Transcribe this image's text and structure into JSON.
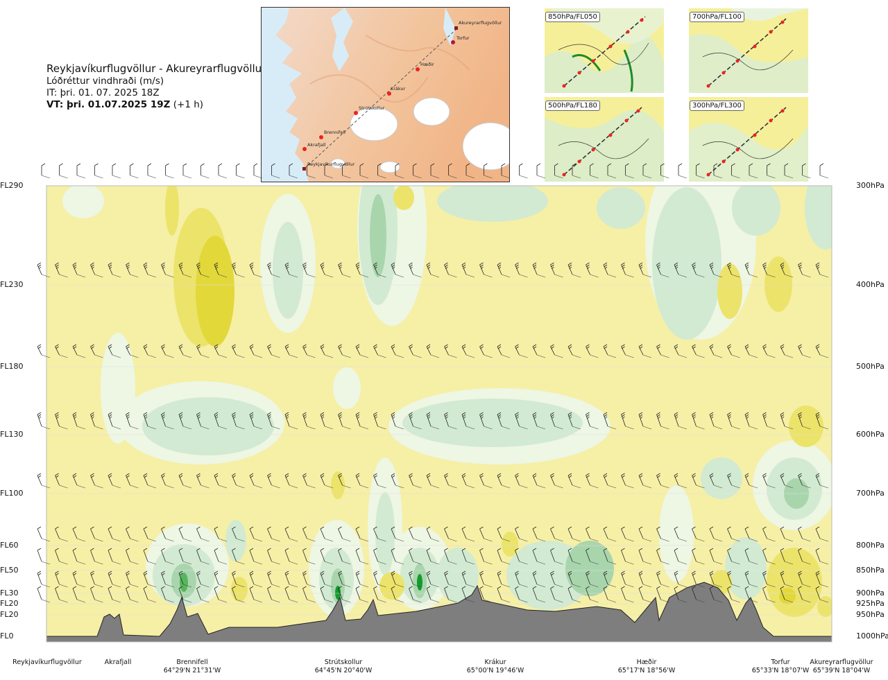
{
  "header": {
    "route": "Reykjavíkurflugvöllur - Akureyrarflugvöllur",
    "product": "Lóðréttur vindhraði (m/s)",
    "issue": "IT: þri. 01. 07. 2025 18Z",
    "valid_bold": "VT: þri. 01.07.2025 19Z",
    "valid_suffix": " (+1 h)"
  },
  "map": {
    "labels": [
      "Akureyrarflugvöllur",
      "Torfur",
      "Hæðir",
      "Krákur",
      "Strútskollur",
      "Brennifell",
      "Akrafjall",
      "Reykjavíkurflugvöllur"
    ]
  },
  "mini_maps": [
    {
      "label": "850hPa/FL050"
    },
    {
      "label": "700hPa/FL100"
    },
    {
      "label": "500hPa/FL180"
    },
    {
      "label": "300hPa/FL300"
    }
  ],
  "chart_data": {
    "type": "heatmap",
    "title": "Lóðréttur vindhraði (m/s)",
    "x_axis": "waypoints along route",
    "flight_levels": [
      "FL290",
      "FL230",
      "FL180",
      "FL130",
      "FL100",
      "FL60",
      "FL50",
      "FL30",
      "FL20",
      "FL20",
      "FL0"
    ],
    "pressure_levels": [
      "300hPa",
      "400hPa",
      "500hPa",
      "600hPa",
      "700hPa",
      "800hPa",
      "850hPa",
      "900hPa",
      "925hPa",
      "950hPa",
      "1000hPa"
    ],
    "waypoints": [
      {
        "name": "Reykjavíkurflugvöllur",
        "coord": ""
      },
      {
        "name": "Akrafjall",
        "coord": ""
      },
      {
        "name": "Brennifell",
        "coord": "64°29'N 21°31'W"
      },
      {
        "name": "Strútskollur",
        "coord": "64°45'N 20°40'W"
      },
      {
        "name": "Krákur",
        "coord": "65°00'N 19°46'W"
      },
      {
        "name": "Hæðir",
        "coord": "65°17'N 18°56'W"
      },
      {
        "name": "Torfur",
        "coord": "65°33'N 18°07'W"
      },
      {
        "name": "Akureyrarflugvöllur",
        "coord": "65°39'N 18°04'W"
      }
    ],
    "colors": {
      "neutral": "#f6efa6",
      "weak_up": "#eef6e4",
      "up1": "#d2ead2",
      "up2": "#a9d5ac",
      "up3": "#56b65d",
      "up4": "#139c2d",
      "down1": "#ece36a",
      "down2": "#e2d83a",
      "terrain": "#7e7e7e"
    }
  }
}
